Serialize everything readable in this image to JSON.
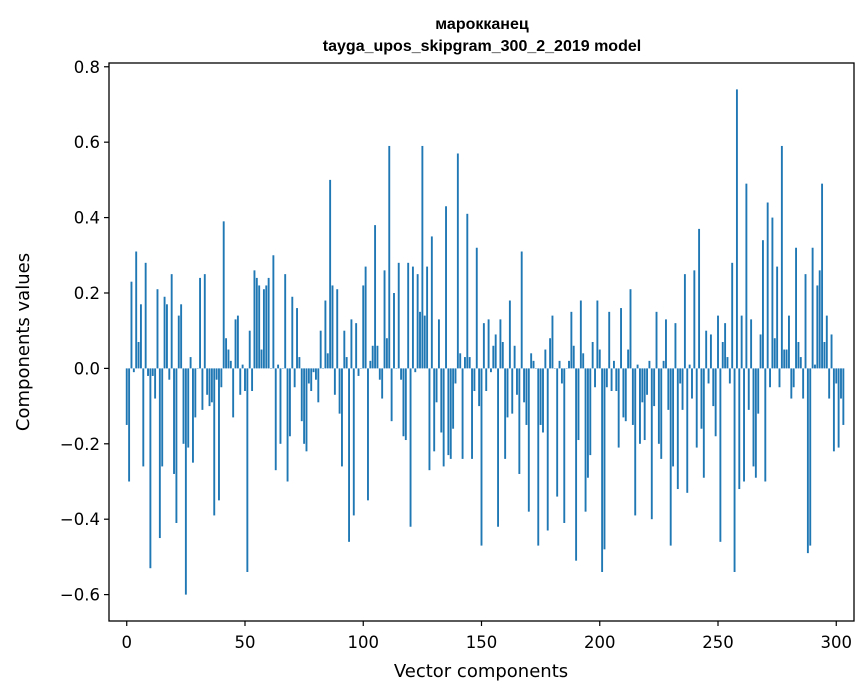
{
  "chart_data": {
    "type": "bar",
    "title": "марокканец",
    "subtitle": "tayga_upos_skipgram_300_2_2019 model",
    "xlabel": "Vector components",
    "ylabel": "Components values",
    "xlim": [
      -7.5,
      307.5
    ],
    "ylim": [
      -0.67,
      0.81
    ],
    "xticks": [
      0,
      50,
      100,
      150,
      200,
      250,
      300
    ],
    "yticks": [
      -0.6,
      -0.4,
      -0.2,
      0.0,
      0.2,
      0.4,
      0.6,
      0.8
    ],
    "ytick_labels": [
      "−0.6",
      "−0.4",
      "−0.2",
      "0.0",
      "0.2",
      "0.4",
      "0.6",
      "0.8"
    ],
    "xtick_labels": [
      "0",
      "50",
      "100",
      "150",
      "200",
      "250",
      "300"
    ],
    "bar_color": "#1f77b4",
    "values": [
      -0.15,
      -0.3,
      0.23,
      -0.01,
      0.31,
      0.07,
      0.17,
      -0.26,
      0.28,
      -0.02,
      -0.53,
      -0.02,
      -0.08,
      0.21,
      -0.45,
      -0.26,
      0.19,
      0.17,
      -0.03,
      0.25,
      -0.28,
      -0.41,
      0.14,
      0.17,
      -0.2,
      -0.6,
      -0.21,
      0.03,
      -0.25,
      -0.13,
      0.0,
      0.24,
      -0.11,
      0.25,
      -0.07,
      -0.1,
      -0.09,
      -0.39,
      -0.03,
      -0.35,
      -0.05,
      0.39,
      0.08,
      0.05,
      0.02,
      -0.13,
      0.13,
      0.14,
      -0.07,
      0.01,
      -0.06,
      -0.54,
      0.1,
      -0.06,
      0.26,
      0.24,
      0.22,
      0.05,
      0.21,
      0.22,
      0.24,
      0.0,
      0.3,
      -0.27,
      0.01,
      -0.2,
      0.0,
      0.25,
      -0.3,
      -0.18,
      0.19,
      -0.05,
      0.16,
      0.03,
      -0.14,
      -0.2,
      -0.22,
      -0.04,
      -0.06,
      -0.01,
      -0.03,
      -0.09,
      0.1,
      0.0,
      0.18,
      0.04,
      0.5,
      0.22,
      -0.07,
      0.21,
      -0.12,
      -0.26,
      0.1,
      0.03,
      -0.46,
      0.13,
      -0.39,
      0.12,
      -0.02,
      0.0,
      0.22,
      0.27,
      -0.35,
      0.02,
      0.06,
      0.38,
      0.06,
      -0.03,
      -0.08,
      0.26,
      0.08,
      0.59,
      -0.14,
      0.2,
      0.0,
      0.28,
      -0.03,
      -0.18,
      -0.19,
      0.28,
      -0.42,
      0.27,
      -0.01,
      0.25,
      0.15,
      0.59,
      0.14,
      0.27,
      -0.27,
      0.35,
      -0.22,
      -0.09,
      0.13,
      -0.17,
      -0.26,
      0.43,
      -0.23,
      -0.24,
      -0.16,
      -0.04,
      0.57,
      0.04,
      -0.24,
      0.03,
      0.41,
      0.03,
      -0.24,
      -0.06,
      0.32,
      -0.1,
      -0.47,
      0.12,
      -0.06,
      0.13,
      -0.01,
      0.06,
      0.09,
      -0.42,
      0.13,
      0.07,
      -0.24,
      -0.13,
      0.18,
      -0.12,
      0.06,
      -0.07,
      -0.28,
      0.31,
      -0.09,
      -0.15,
      -0.38,
      0.04,
      0.02,
      0.0,
      -0.47,
      -0.15,
      -0.17,
      0.05,
      -0.43,
      0.08,
      0.14,
      0.0,
      -0.34,
      0.02,
      -0.04,
      -0.41,
      0.0,
      0.02,
      0.15,
      0.06,
      -0.51,
      -0.19,
      0.18,
      0.04,
      -0.38,
      -0.29,
      -0.23,
      0.07,
      -0.05,
      0.18,
      0.05,
      -0.54,
      -0.48,
      -0.05,
      0.15,
      -0.06,
      0.02,
      -0.06,
      -0.21,
      0.16,
      -0.13,
      -0.14,
      0.05,
      0.21,
      -0.15,
      -0.39,
      0.01,
      -0.2,
      -0.09,
      -0.19,
      -0.07,
      0.02,
      -0.4,
      -0.1,
      0.15,
      -0.2,
      -0.24,
      0.02,
      0.13,
      -0.11,
      -0.47,
      -0.26,
      0.12,
      -0.32,
      -0.04,
      -0.11,
      0.25,
      -0.33,
      0.01,
      -0.08,
      0.26,
      -0.21,
      0.37,
      -0.16,
      -0.29,
      0.1,
      -0.04,
      0.09,
      -0.1,
      -0.18,
      0.14,
      -0.46,
      0.07,
      0.12,
      0.03,
      -0.04,
      0.28,
      -0.54,
      0.74,
      -0.32,
      0.14,
      -0.3,
      0.49,
      -0.11,
      0.13,
      -0.26,
      -0.29,
      -0.12,
      0.09,
      0.34,
      -0.3,
      0.44,
      -0.05,
      0.4,
      0.08,
      0.27,
      -0.05,
      0.59,
      0.05,
      0.05,
      0.14,
      -0.08,
      -0.05,
      0.32,
      0.07,
      0.03,
      -0.08,
      0.25,
      -0.49,
      -0.47,
      0.32,
      0.01,
      0.22,
      0.26,
      0.49,
      0.07,
      0.14,
      -0.08,
      0.09,
      -0.22,
      -0.04,
      -0.21,
      -0.08,
      -0.15
    ]
  }
}
